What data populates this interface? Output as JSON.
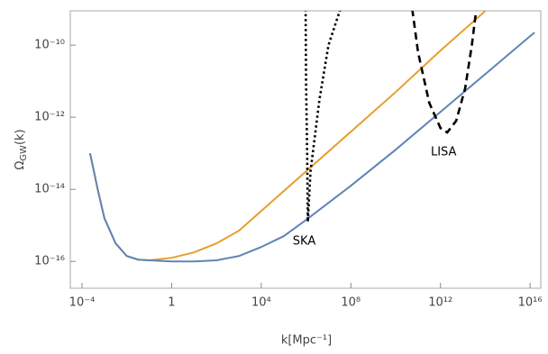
{
  "chart_data": {
    "type": "line",
    "xlabel": "k[Mpc⁻¹]",
    "ylabel": [
      "Ω",
      "GW",
      "(k)"
    ],
    "xscale": "log",
    "yscale": "log",
    "xlim": [
      3e-05,
      3e+16
    ],
    "ylim": [
      1.8e-17,
      9e-10
    ],
    "xticks": [
      {
        "value": 0.0001,
        "label": "10⁻⁴"
      },
      1,
      {
        "value": 10000,
        "label": "10⁴"
      },
      {
        "value": 100000000.0,
        "label": "10⁸"
      },
      {
        "value": 1000000000000.0,
        "label": "10¹²"
      },
      {
        "value": 1e+16,
        "label": "10¹⁶"
      }
    ],
    "yticks": [
      {
        "value": 1e-16,
        "label": "10⁻¹⁶"
      },
      {
        "value": 1e-14,
        "label": "10⁻¹⁴"
      },
      {
        "value": 1e-12,
        "label": "10⁻¹²"
      },
      {
        "value": 1e-10,
        "label": "10⁻¹⁰"
      }
    ],
    "series": [
      {
        "color": "#e69f2b",
        "dash": "solid",
        "x": [
          0.000229,
          0.000501,
          0.001,
          0.00316,
          0.01,
          0.0316,
          0.1,
          1,
          10,
          100,
          1000.0,
          10000.0,
          1000000.0,
          100000000.0,
          10000000000.0,
          1000000000000.0,
          100000000000000.0
        ],
        "values": [
          1e-13,
          1e-14,
          1.58e-15,
          3.16e-16,
          1.41e-16,
          1.12e-16,
          1.07e-16,
          1.26e-16,
          1.78e-16,
          3.16e-16,
          7.08e-16,
          2.51e-15,
          3.16e-14,
          3.98e-13,
          5.01e-12,
          7.08e-11,
          8.91e-10
        ]
      },
      {
        "color": "#5f84b6",
        "dash": "solid",
        "x": [
          0.000229,
          0.000501,
          0.001,
          0.00316,
          0.01,
          0.0316,
          0.1,
          1,
          10,
          100,
          1000.0,
          10000.0,
          100000.0,
          1000000.0,
          100000000.0,
          10000000000.0,
          1000000000000.0,
          100000000000000.0,
          1e+16,
          1.58e+16
        ],
        "values": [
          1e-13,
          1e-14,
          1.58e-15,
          3.16e-16,
          1.41e-16,
          1.12e-16,
          1.07e-16,
          1e-16,
          1e-16,
          1.07e-16,
          1.41e-16,
          2.51e-16,
          5.01e-16,
          1.41e-15,
          1.26e-14,
          1.26e-13,
          1.41e-12,
          1.58e-11,
          1.78e-10,
          2.24e-10
        ]
      },
      {
        "name": "SKA",
        "color": "#000000",
        "dash": "dotted",
        "x": [
          955000.0,
          1000000.0,
          1120000.0,
          1200000.0,
          1580000.0,
          3980000.0,
          10000000.0,
          33900000.0
        ],
        "values": [
          1e-09,
          1e-11,
          1e-13,
          1.26e-15,
          3.16e-14,
          3.16e-12,
          1e-10,
          1e-09
        ]
      },
      {
        "name": "LISA",
        "color": "#000000",
        "dash": "dashed",
        "x": [
          55000000000.0,
          100000000000.0,
          316000000000.0,
          1000000000000.0,
          2000000000000.0,
          5010000000000.0,
          12600000000000.0,
          25100000000000.0,
          39800000000000.0
        ],
        "values": [
          1e-09,
          6.31e-11,
          2.51e-12,
          5.01e-13,
          3.8e-13,
          7.94e-13,
          6.31e-12,
          1e-10,
          1e-09
        ]
      }
    ]
  }
}
